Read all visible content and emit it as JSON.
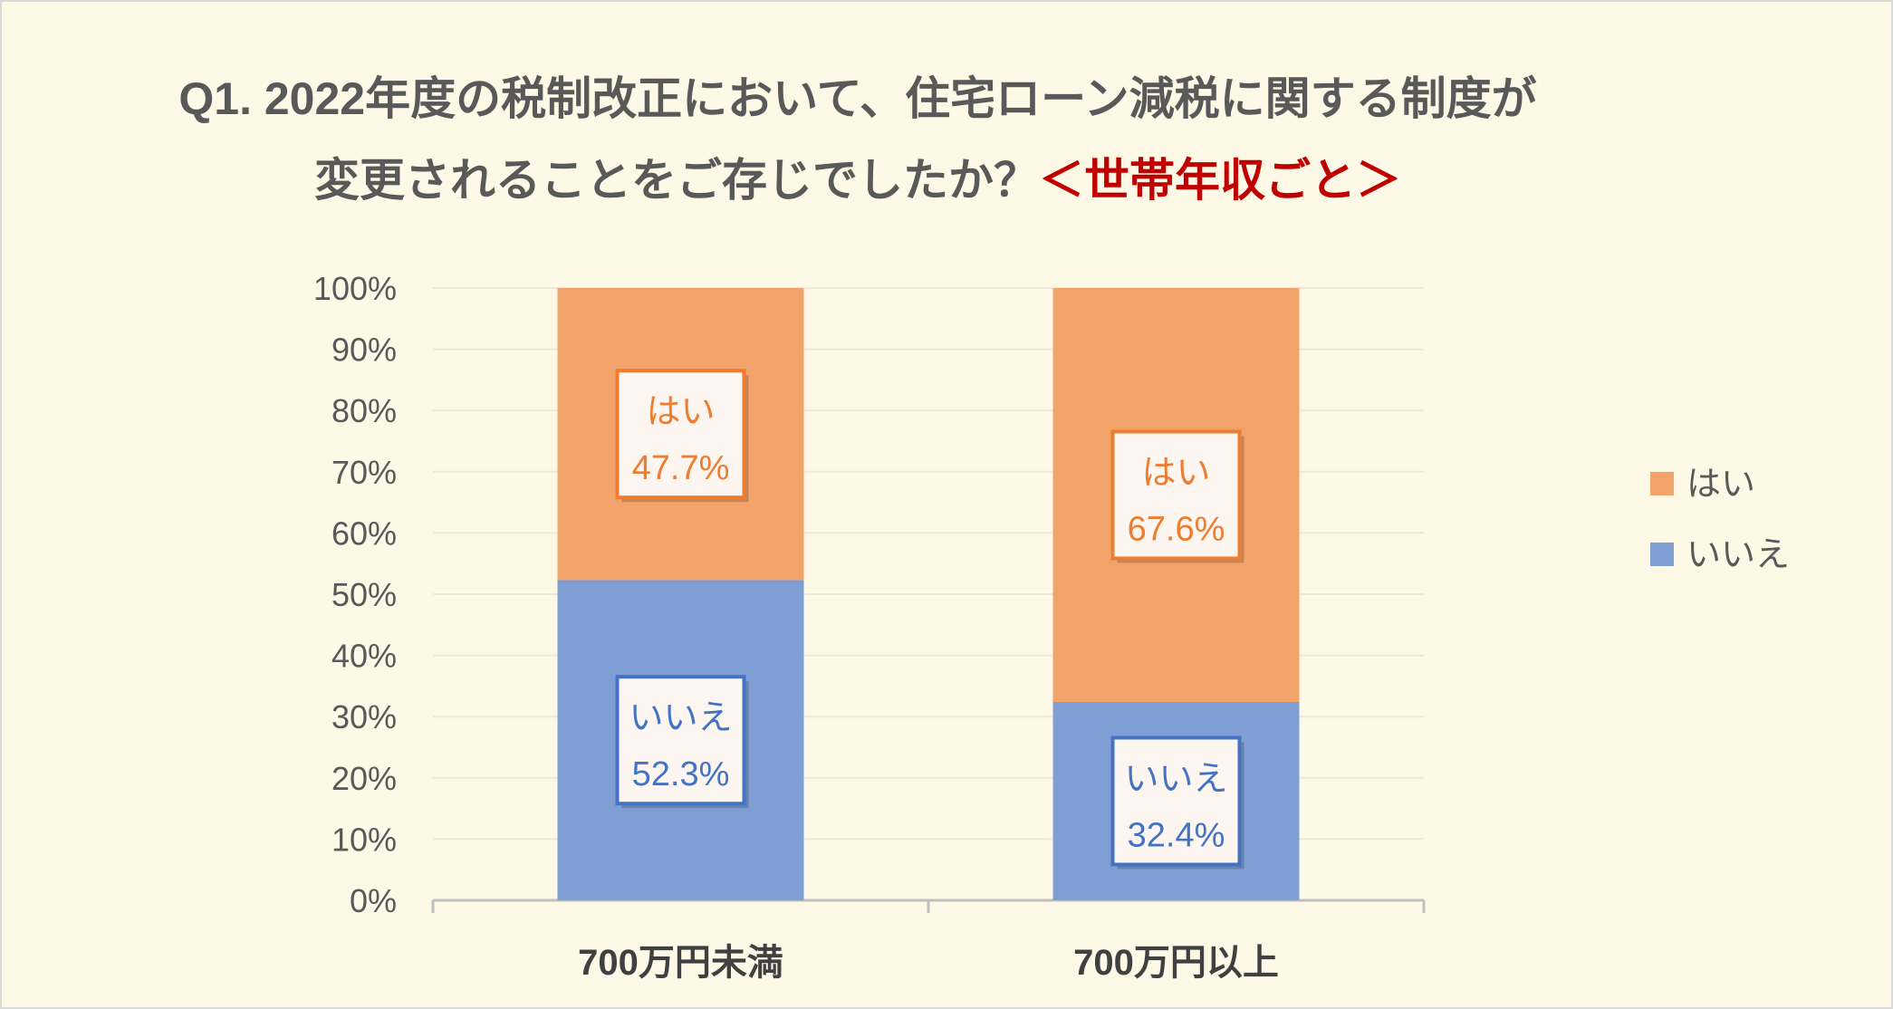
{
  "title": {
    "line1": "Q1. 2022年度の税制改正において、住宅ローン減税に関する制度が",
    "line2": "変更されることをご存じでしたか？",
    "accent": "＜世帯年収ごと＞"
  },
  "colors": {
    "yes": "#f2a36a",
    "no": "#7f9fd4",
    "yes_text": "#ed7d31",
    "no_text": "#4472c4",
    "grid": "#ece8e0",
    "axis": "#bfbfbf"
  },
  "chart_data": {
    "type": "bar",
    "stacked": true,
    "categories": [
      "700万円未満",
      "700万円以上"
    ],
    "series": [
      {
        "name": "いいえ",
        "values": [
          52.3,
          32.4
        ]
      },
      {
        "name": "はい",
        "values": [
          47.7,
          67.6
        ]
      }
    ],
    "value_labels": [
      [
        "52.3%",
        "32.4%"
      ],
      [
        "47.7%",
        "67.6%"
      ]
    ],
    "y_ticks": [
      "0%",
      "10%",
      "20%",
      "30%",
      "40%",
      "50%",
      "60%",
      "70%",
      "80%",
      "90%",
      "100%"
    ],
    "ylim": [
      0,
      100
    ],
    "legend": [
      "はい",
      "いいえ"
    ],
    "legend_position": "right",
    "grid": true
  }
}
